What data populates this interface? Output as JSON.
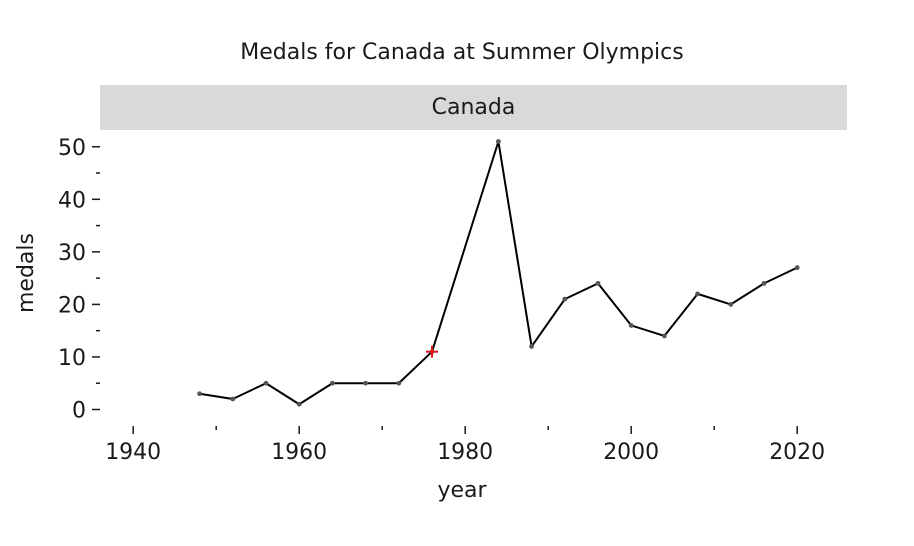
{
  "chart_data": {
    "type": "line",
    "title": "Medals for Canada at Summer Olympics",
    "facet_label": "Canada",
    "xlabel": "year",
    "ylabel": "medals",
    "xlim": [
      1936,
      2026
    ],
    "ylim": [
      -2,
      53
    ],
    "x_ticks": [
      1940,
      1960,
      1980,
      2000,
      2020
    ],
    "x_minor_ticks": [
      1950,
      1970,
      1990,
      2010
    ],
    "y_ticks": [
      0,
      10,
      20,
      30,
      40,
      50
    ],
    "y_minor_ticks": [
      5,
      15,
      25,
      35,
      45
    ],
    "grid": false,
    "series": [
      {
        "x": [
          1948,
          1952,
          1956,
          1960,
          1964,
          1968,
          1972,
          1976,
          1984,
          1988,
          1992,
          1996,
          2000,
          2004,
          2008,
          2012,
          2016,
          2020
        ],
        "y": [
          3,
          2,
          5,
          1,
          5,
          5,
          5,
          11,
          51,
          12,
          21,
          24,
          16,
          14,
          22,
          20,
          24,
          27
        ],
        "color": "#000000",
        "marker_color": "#555555"
      }
    ],
    "highlight": {
      "x": 1976,
      "y": 11,
      "marker": "plus",
      "color": "#e8161b"
    },
    "strip_color": "#d9d9d9"
  }
}
